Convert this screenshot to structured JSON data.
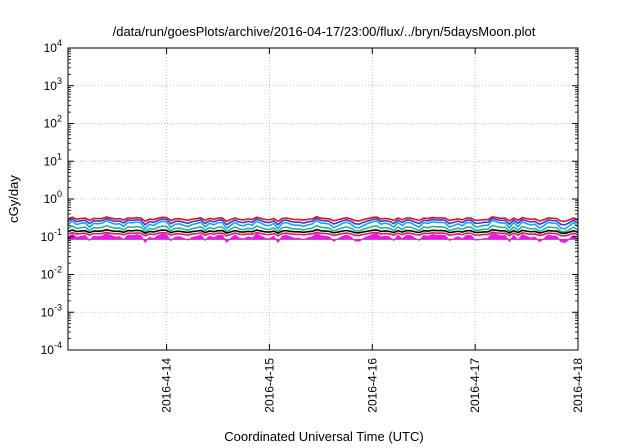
{
  "chart_data": {
    "type": "line",
    "title": "/data/run/goesPlots/archive/2016-04-17/23:00/flux/../bryn/5daysMoon.plot",
    "xlabel": "Coordinated Universal Time (UTC)",
    "ylabel": "cGy/day",
    "yscale": "log",
    "ylim": [
      0.0001,
      10000
    ],
    "yticks": [
      {
        "value": 0.0001,
        "base": "10",
        "exp": "-4"
      },
      {
        "value": 0.001,
        "base": "10",
        "exp": "-3"
      },
      {
        "value": 0.01,
        "base": "10",
        "exp": "-2"
      },
      {
        "value": 0.1,
        "base": "10",
        "exp": "-1"
      },
      {
        "value": 1,
        "base": "10",
        "exp": "0"
      },
      {
        "value": 10,
        "base": "10",
        "exp": "1"
      },
      {
        "value": 100,
        "base": "10",
        "exp": "2"
      },
      {
        "value": 1000,
        "base": "10",
        "exp": "3"
      },
      {
        "value": 10000,
        "base": "10",
        "exp": "4"
      }
    ],
    "xlim": [
      "2016-04-13 01:00",
      "2016-04-18 00:00"
    ],
    "xticks": [
      "2016-4-14",
      "2016-4-15",
      "2016-4-16",
      "2016-4-17",
      "2016-4-18"
    ],
    "grid": true,
    "legend": "none",
    "series": [
      {
        "color": "#e0101f",
        "base": 0.3,
        "amp": 0.25
      },
      {
        "color": "#3a3ad8",
        "base": 0.26,
        "amp": 0.35
      },
      {
        "color": "#1aa0f0",
        "base": 0.22,
        "amp": 0.45
      },
      {
        "color": "#1fb88a",
        "base": 0.17,
        "amp": 0.35
      },
      {
        "color": "#000000",
        "base": 0.14,
        "amp": 0.2
      },
      {
        "color": "#e01a4f",
        "base": 0.12,
        "amp": 0.2
      },
      {
        "color": "#e020e0",
        "base": 0.1,
        "amp": 0.5,
        "filled": true
      }
    ]
  }
}
